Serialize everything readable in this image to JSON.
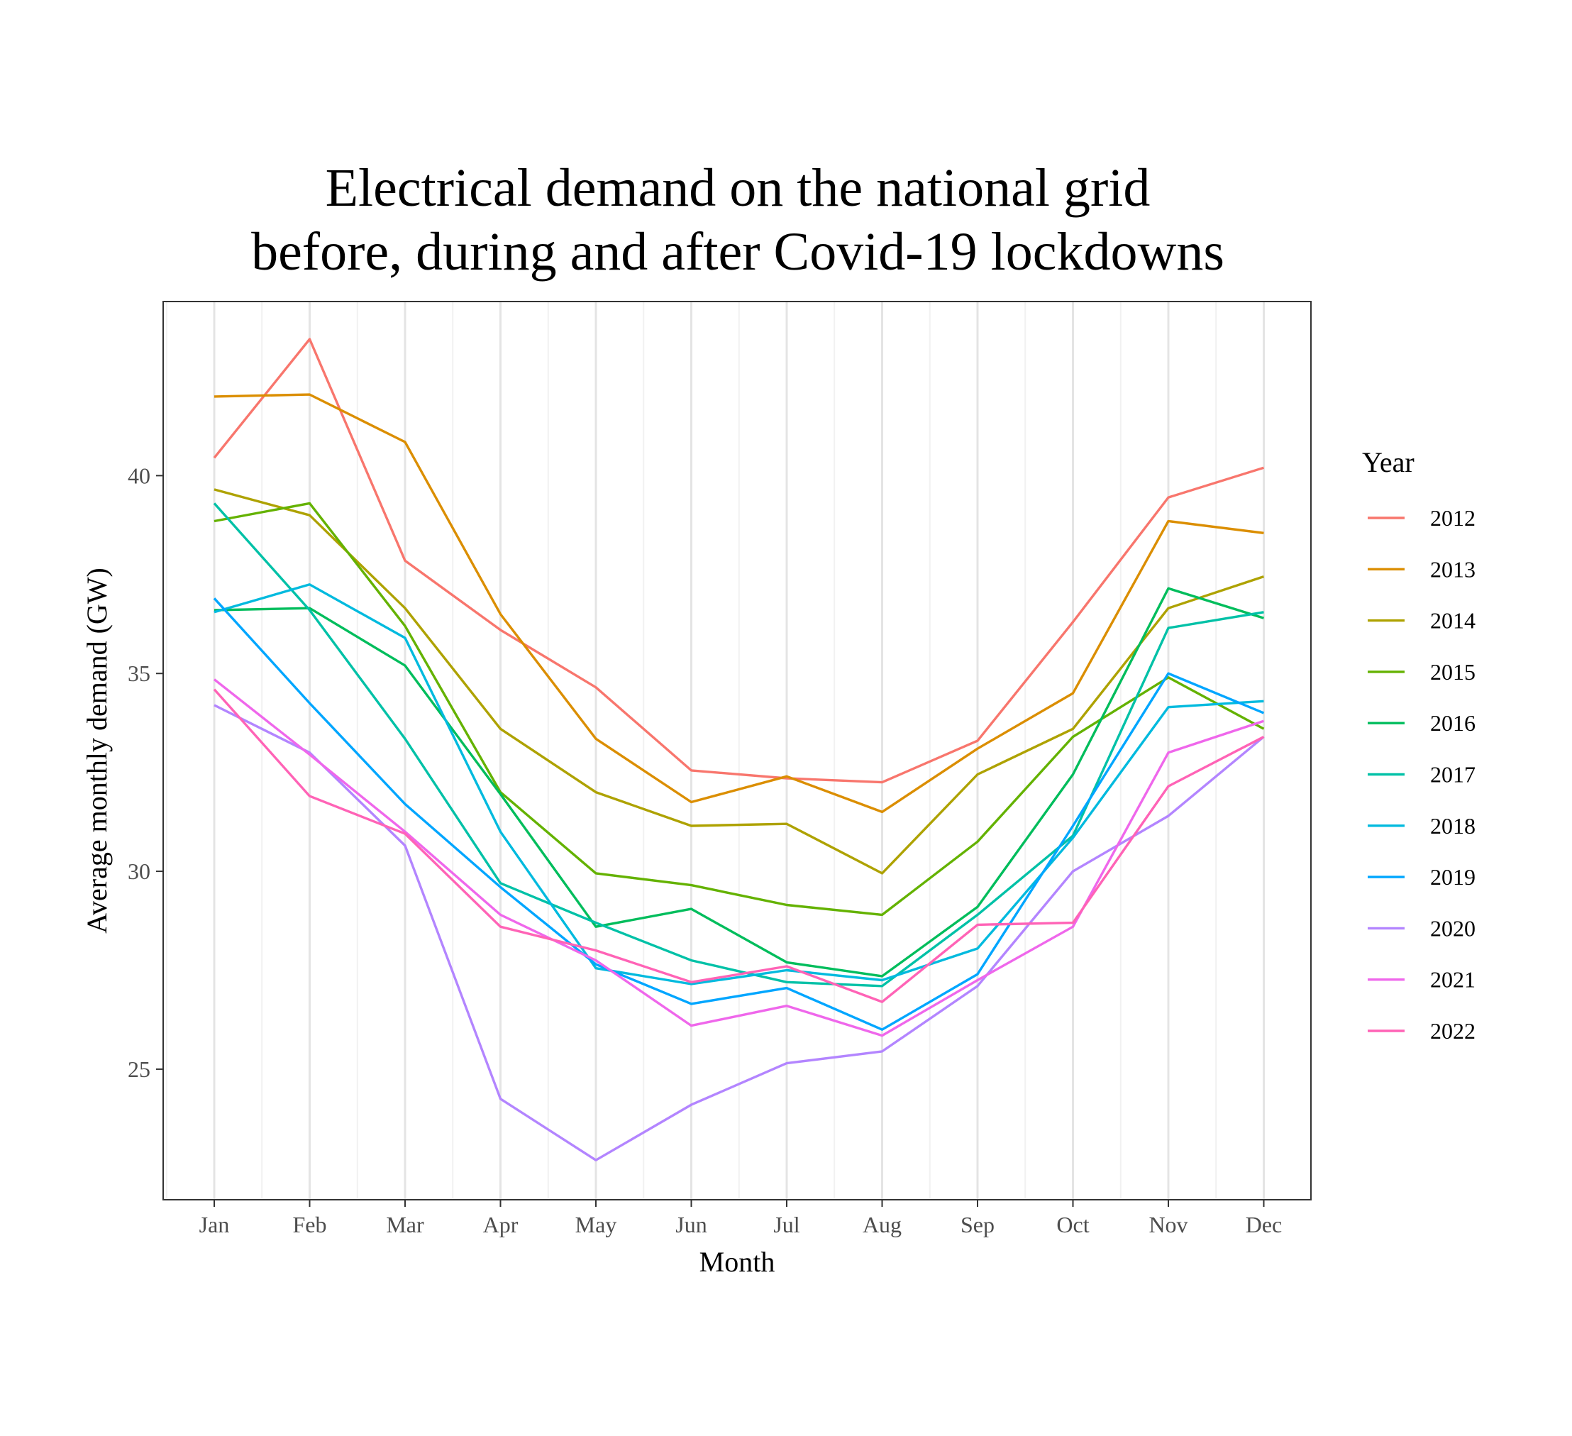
{
  "chart_data": {
    "type": "line",
    "title_line1": "Electrical demand on the national grid",
    "title_line2": "before, during and after Covid-19 lockdowns",
    "xlabel": "Month",
    "ylabel": "Average monthly demand (GW)",
    "categories": [
      "Jan",
      "Feb",
      "Mar",
      "Apr",
      "May",
      "Jun",
      "Jul",
      "Aug",
      "Sep",
      "Oct",
      "Nov",
      "Dec"
    ],
    "yticks": [
      25,
      30,
      35,
      40
    ],
    "ylim": [
      21.7,
      44.4
    ],
    "grid": true,
    "legend": {
      "title": "Year",
      "placement": "right"
    },
    "series": [
      {
        "name": "2012",
        "color": "#F8766D",
        "values": [
          40.45,
          43.45,
          37.85,
          36.1,
          34.65,
          32.55,
          32.35,
          32.25,
          33.3,
          36.3,
          39.45,
          40.2
        ]
      },
      {
        "name": "2013",
        "color": "#DB8E00",
        "values": [
          42.0,
          42.05,
          40.85,
          36.5,
          33.35,
          31.75,
          32.4,
          31.5,
          33.1,
          34.5,
          38.85,
          38.55
        ]
      },
      {
        "name": "2014",
        "color": "#AEA200",
        "values": [
          39.65,
          39.0,
          36.65,
          33.6,
          32.0,
          31.15,
          31.2,
          29.95,
          32.45,
          33.6,
          36.65,
          37.45
        ]
      },
      {
        "name": "2015",
        "color": "#64B200",
        "values": [
          38.85,
          39.3,
          36.2,
          32.0,
          29.95,
          29.65,
          29.15,
          28.9,
          30.75,
          33.4,
          34.9,
          33.6
        ]
      },
      {
        "name": "2016",
        "color": "#00BD5C",
        "values": [
          36.6,
          36.65,
          35.2,
          31.95,
          28.6,
          29.05,
          27.7,
          27.35,
          29.1,
          32.45,
          37.15,
          36.4
        ]
      },
      {
        "name": "2017",
        "color": "#00C1A7",
        "values": [
          39.3,
          36.6,
          33.35,
          29.7,
          28.7,
          27.75,
          27.2,
          27.1,
          28.9,
          30.9,
          36.15,
          36.55
        ]
      },
      {
        "name": "2018",
        "color": "#00BADE",
        "values": [
          36.55,
          37.25,
          35.9,
          31.0,
          27.55,
          27.15,
          27.5,
          27.25,
          28.05,
          30.85,
          34.15,
          34.3
        ]
      },
      {
        "name": "2019",
        "color": "#00A6FF",
        "values": [
          36.9,
          34.25,
          31.7,
          29.6,
          27.65,
          26.65,
          27.05,
          26.0,
          27.4,
          31.15,
          35.0,
          34.0
        ]
      },
      {
        "name": "2020",
        "color": "#B385FF",
        "values": [
          34.2,
          33.0,
          30.65,
          24.25,
          22.7,
          24.1,
          25.15,
          25.45,
          27.1,
          30.0,
          31.4,
          33.4
        ]
      },
      {
        "name": "2021",
        "color": "#EF67EB",
        "values": [
          34.85,
          32.95,
          31.0,
          28.9,
          27.75,
          26.1,
          26.6,
          25.85,
          27.25,
          28.6,
          33.0,
          33.8
        ]
      },
      {
        "name": "2022",
        "color": "#FF63B6",
        "values": [
          34.6,
          31.9,
          30.95,
          28.6,
          28.0,
          27.2,
          27.6,
          26.7,
          28.65,
          28.7,
          32.15,
          33.4
        ]
      }
    ]
  }
}
